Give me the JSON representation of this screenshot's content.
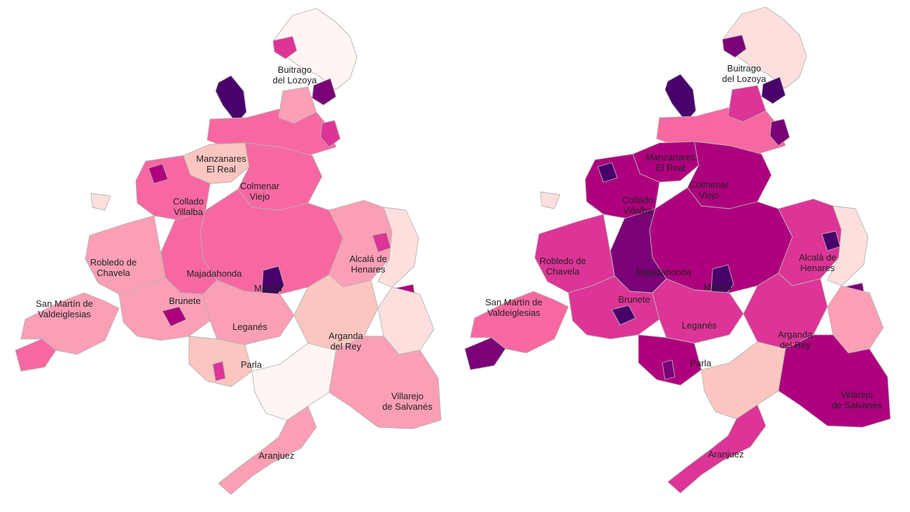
{
  "palette": [
    "#fff5f2",
    "#fde0dd",
    "#fcc5c0",
    "#fa9fb5",
    "#f768a1",
    "#dd3497",
    "#ae017e",
    "#7a0177",
    "#49006a"
  ],
  "maps": [
    {
      "labels": [
        {
          "id": "buitrago",
          "lines": [
            "Buitrago",
            "del Lozoya"
          ]
        },
        {
          "id": "manzanares",
          "lines": [
            "Manzanares",
            "El Real"
          ]
        },
        {
          "id": "colmenar",
          "lines": [
            "Colmenar",
            "Viejo"
          ]
        },
        {
          "id": "collado",
          "lines": [
            "Collado",
            "Villalba"
          ]
        },
        {
          "id": "robledo",
          "lines": [
            "Robledo de",
            "Chavela"
          ]
        },
        {
          "id": "majadahonda",
          "lines": [
            "Majadahonda"
          ]
        },
        {
          "id": "alcala",
          "lines": [
            "Alcalá de",
            "Henares"
          ]
        },
        {
          "id": "sanmartin",
          "lines": [
            "San Martín de",
            "Valdeiglesias"
          ]
        },
        {
          "id": "brunete",
          "lines": [
            "Brunete"
          ]
        },
        {
          "id": "madrid",
          "lines": [
            "Madrid"
          ]
        },
        {
          "id": "leganes",
          "lines": [
            "Leganés"
          ]
        },
        {
          "id": "arganda",
          "lines": [
            "Arganda",
            "del Rey"
          ]
        },
        {
          "id": "parla",
          "lines": [
            "Parla"
          ]
        },
        {
          "id": "villarejo",
          "lines": [
            "Villarejo",
            "de Salvanés"
          ]
        },
        {
          "id": "aranjuez",
          "lines": [
            "Aranjuez"
          ]
        }
      ],
      "levels": {
        "north-far": 0,
        "north-west": 8,
        "north-east": 7,
        "lozoya-top": 5,
        "sierra-north": 4,
        "sierra-mid": 3,
        "manzanares": 2,
        "colmenar": 4,
        "collado": 4,
        "robledo": 3,
        "west-edge": 1,
        "majadahonda": 4,
        "madrid-core": 4,
        "madrid-city": 8,
        "alcala": 3,
        "east-edge": 1,
        "east-dark": 6,
        "sanmartin": 3,
        "sw-tip": 4,
        "brunete": 3,
        "brunete-dark": 6,
        "leganes": 3,
        "parla": 2,
        "arganda": 2,
        "south-east": 1,
        "villarejo": 3,
        "south-tip": 0,
        "aranjuez": 3,
        "spot-a": 5,
        "spot-b": 6,
        "spot-c": 5,
        "spot-d": 5
      }
    },
    {
      "labels": [
        {
          "id": "buitrago",
          "lines": [
            "Buitrago",
            "del Lozoya"
          ]
        },
        {
          "id": "manzanares",
          "lines": [
            "Manzanares",
            "El Real"
          ]
        },
        {
          "id": "colmenar",
          "lines": [
            "Colmenar",
            "Viejo"
          ]
        },
        {
          "id": "collado",
          "lines": [
            "Collado",
            "Villalba"
          ]
        },
        {
          "id": "robledo",
          "lines": [
            "Robledo de",
            "Chavela"
          ]
        },
        {
          "id": "majadahonda",
          "lines": [
            "Majadahonda"
          ]
        },
        {
          "id": "alcala",
          "lines": [
            "Alcalá de",
            "Henares"
          ]
        },
        {
          "id": "sanmartin",
          "lines": [
            "San Martín de",
            "Valdeiglesias"
          ]
        },
        {
          "id": "brunete",
          "lines": [
            "Brunete"
          ]
        },
        {
          "id": "madrid",
          "lines": [
            "Madrid"
          ]
        },
        {
          "id": "leganes",
          "lines": [
            "Leganés"
          ]
        },
        {
          "id": "arganda",
          "lines": [
            "Arganda",
            "del Rey"
          ]
        },
        {
          "id": "parla",
          "lines": [
            "Parla"
          ]
        },
        {
          "id": "villarejo",
          "lines": [
            "Villarejo",
            "de Salvanés"
          ]
        },
        {
          "id": "aranjuez",
          "lines": [
            "Aranjuez"
          ]
        }
      ],
      "levels": {
        "north-far": 1,
        "north-west": 8,
        "north-east": 8,
        "lozoya-top": 7,
        "sierra-north": 4,
        "sierra-mid": 5,
        "manzanares": 6,
        "colmenar": 6,
        "collado": 6,
        "robledo": 5,
        "west-edge": 1,
        "majadahonda": 7,
        "madrid-core": 6,
        "madrid-city": 8,
        "alcala": 5,
        "east-edge": 1,
        "east-dark": 7,
        "sanmartin": 4,
        "sw-tip": 7,
        "brunete": 5,
        "brunete-dark": 8,
        "leganes": 5,
        "parla": 6,
        "arganda": 5,
        "south-east": 3,
        "villarejo": 6,
        "south-tip": 2,
        "aranjuez": 5,
        "spot-a": 7,
        "spot-b": 8,
        "spot-c": 7,
        "spot-d": 8
      }
    }
  ]
}
